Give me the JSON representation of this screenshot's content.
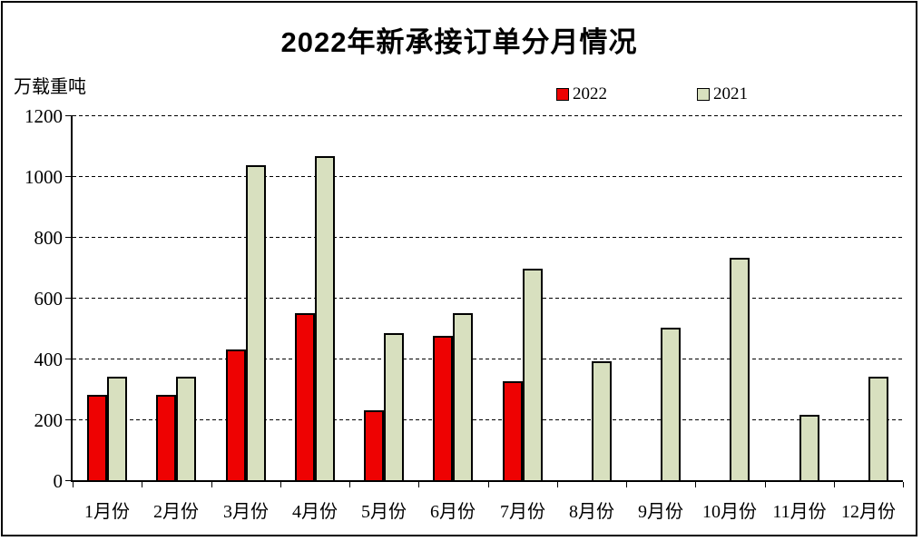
{
  "chart_data": {
    "type": "bar",
    "title": "2022年新承接订单分月情况",
    "unit_label": "万载重吨",
    "categories": [
      "1月份",
      "2月份",
      "3月份",
      "4月份",
      "5月份",
      "6月份",
      "7月份",
      "8月份",
      "9月份",
      "10月份",
      "11月份",
      "12月份"
    ],
    "series": [
      {
        "name": "2022",
        "color": "#ee0202",
        "values": [
          280,
          280,
          430,
          550,
          230,
          475,
          325,
          null,
          null,
          null,
          null,
          null
        ]
      },
      {
        "name": "2021",
        "color": "#d8e0bf",
        "values": [
          340,
          340,
          1035,
          1065,
          485,
          550,
          695,
          390,
          500,
          730,
          215,
          340
        ]
      }
    ],
    "ylim": [
      0,
      1200
    ],
    "ytick_step": 200,
    "yticks": [
      "0",
      "200",
      "400",
      "600",
      "800",
      "1000",
      "1200"
    ],
    "grid": "horizontal-dashed",
    "legend_position": "top-center"
  }
}
